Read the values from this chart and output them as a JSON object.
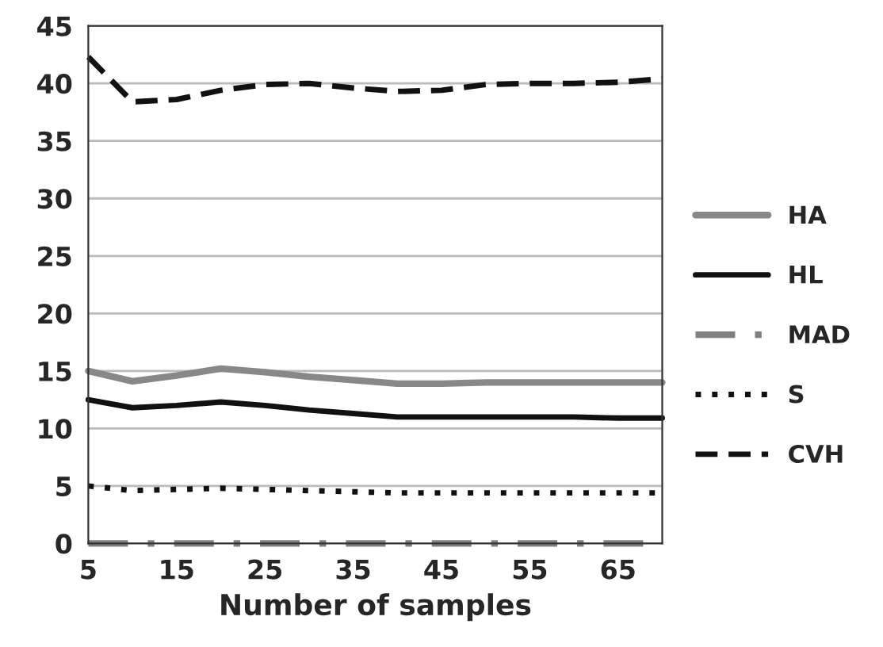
{
  "chart_data": {
    "type": "line",
    "xlabel": "Number of samples",
    "x": [
      5,
      10,
      15,
      20,
      25,
      30,
      35,
      40,
      45,
      50,
      55,
      60,
      65,
      70
    ],
    "xlim": [
      5,
      70
    ],
    "xticks": [
      5,
      15,
      25,
      35,
      45,
      55,
      65
    ],
    "ylim": [
      0,
      45
    ],
    "yticks": [
      0,
      5,
      10,
      15,
      20,
      25,
      30,
      35,
      40,
      45
    ],
    "grid": "y",
    "legend": "right",
    "marker": "none",
    "series": [
      {
        "name": "HA",
        "color": "#888888",
        "line_style": "solid",
        "values": [
          15,
          14.1,
          14.6,
          15.2,
          14.9,
          14.5,
          14.2,
          13.9,
          13.9,
          14,
          14,
          14,
          14,
          14
        ]
      },
      {
        "name": "HL",
        "color": "#111111",
        "line_style": "solid",
        "values": [
          12.5,
          11.8,
          12,
          12.3,
          12,
          11.6,
          11.3,
          11,
          11,
          11,
          11,
          11,
          10.9,
          10.9
        ]
      },
      {
        "name": "MAD",
        "color": "#808080",
        "line_style": "dashdot",
        "values": [
          0,
          0,
          0,
          0,
          0,
          0,
          0,
          0,
          0,
          0,
          0,
          0,
          0,
          0
        ]
      },
      {
        "name": "S",
        "color": "#111111",
        "line_style": "dotted",
        "values": [
          5,
          4.6,
          4.7,
          4.8,
          4.7,
          4.6,
          4.5,
          4.4,
          4.4,
          4.4,
          4.4,
          4.4,
          4.4,
          4.4
        ]
      },
      {
        "name": "CVH",
        "color": "#111111",
        "line_style": "dashed",
        "values": [
          42.3,
          38.4,
          38.6,
          39.4,
          39.9,
          40,
          39.6,
          39.3,
          39.4,
          39.9,
          40,
          40,
          40.1,
          40.4
        ]
      }
    ]
  }
}
